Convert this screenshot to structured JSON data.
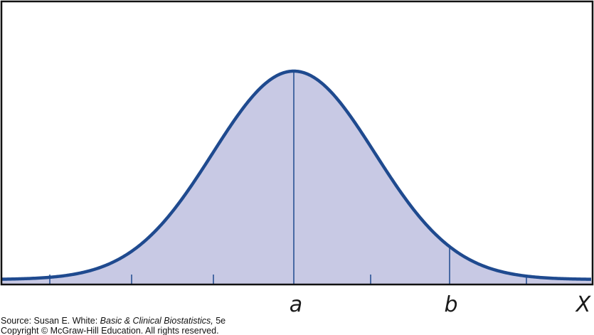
{
  "axis_labels": {
    "a": "a",
    "b": "b",
    "x": "X"
  },
  "source": {
    "prefix": "Source: Susan E. White: ",
    "title": "Basic & Clinical Biostatistics,",
    "edition": " 5e"
  },
  "copyright": "Copyright © McGraw-Hill Education. All rights reserved."
}
